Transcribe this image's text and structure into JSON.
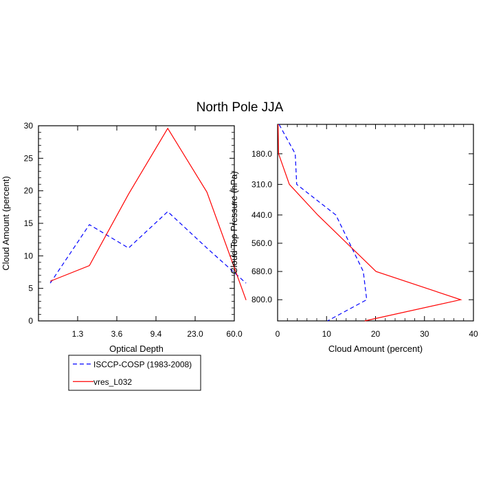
{
  "figure": {
    "title": "North Pole JJA"
  },
  "colors": {
    "isccp": "#0000ff",
    "model": "#ff0000",
    "axis": "#000000"
  },
  "chart_data": [
    {
      "type": "line",
      "xlabel": "Optical Depth",
      "ylabel": "Cloud Amount (percent)",
      "x_ticks": [
        "1.3",
        "3.6",
        "9.4",
        "23.0",
        "60.0"
      ],
      "y_ticks": [
        "0",
        "5",
        "10",
        "15",
        "20",
        "25",
        "30"
      ],
      "ylim": [
        0,
        30
      ],
      "x": [
        0.3,
        1.3,
        2.3,
        3.3,
        4.3,
        5.3
      ],
      "series": [
        {
          "name": "ISCCP-COSP (1983-2008)",
          "values": [
            5.8,
            14.8,
            11.2,
            16.8,
            11.2,
            5.8
          ]
        },
        {
          "name": "vres_L032",
          "values": [
            6.1,
            8.5,
            19.5,
            29.6,
            19.8,
            3.2
          ]
        }
      ]
    },
    {
      "type": "line",
      "xlabel": "Cloud Amount (percent)",
      "ylabel": "Cloud Top Pressure (hPa)",
      "x_ticks": [
        "0",
        "10",
        "20",
        "30",
        "40"
      ],
      "xlim": [
        0,
        40
      ],
      "y_ticks": [
        "180.0",
        "310.0",
        "440.0",
        "560.0",
        "680.0",
        "800.0"
      ],
      "ylim": [
        55,
        890
      ],
      "y_reversed": true,
      "series": [
        {
          "name": "ISCCP-COSP (1983-2008)",
          "points": [
            [
              0.3,
              55
            ],
            [
              3.6,
              180
            ],
            [
              3.9,
              310
            ],
            [
              11.9,
              440
            ],
            [
              17.5,
              680
            ],
            [
              18.2,
              800
            ],
            [
              10.2,
              890
            ]
          ]
        },
        {
          "name": "vres_L032",
          "points": [
            [
              0.1,
              55
            ],
            [
              0.2,
              180
            ],
            [
              2.4,
              310
            ],
            [
              8.2,
              440
            ],
            [
              20.1,
              680
            ],
            [
              37.4,
              800
            ],
            [
              17.8,
              890
            ]
          ]
        }
      ]
    }
  ],
  "legend": {
    "items": [
      {
        "label": "ISCCP-COSP (1983-2008)",
        "color": "#0000ff",
        "dash": true
      },
      {
        "label": "vres_L032",
        "color": "#ff0000",
        "dash": false
      }
    ]
  }
}
